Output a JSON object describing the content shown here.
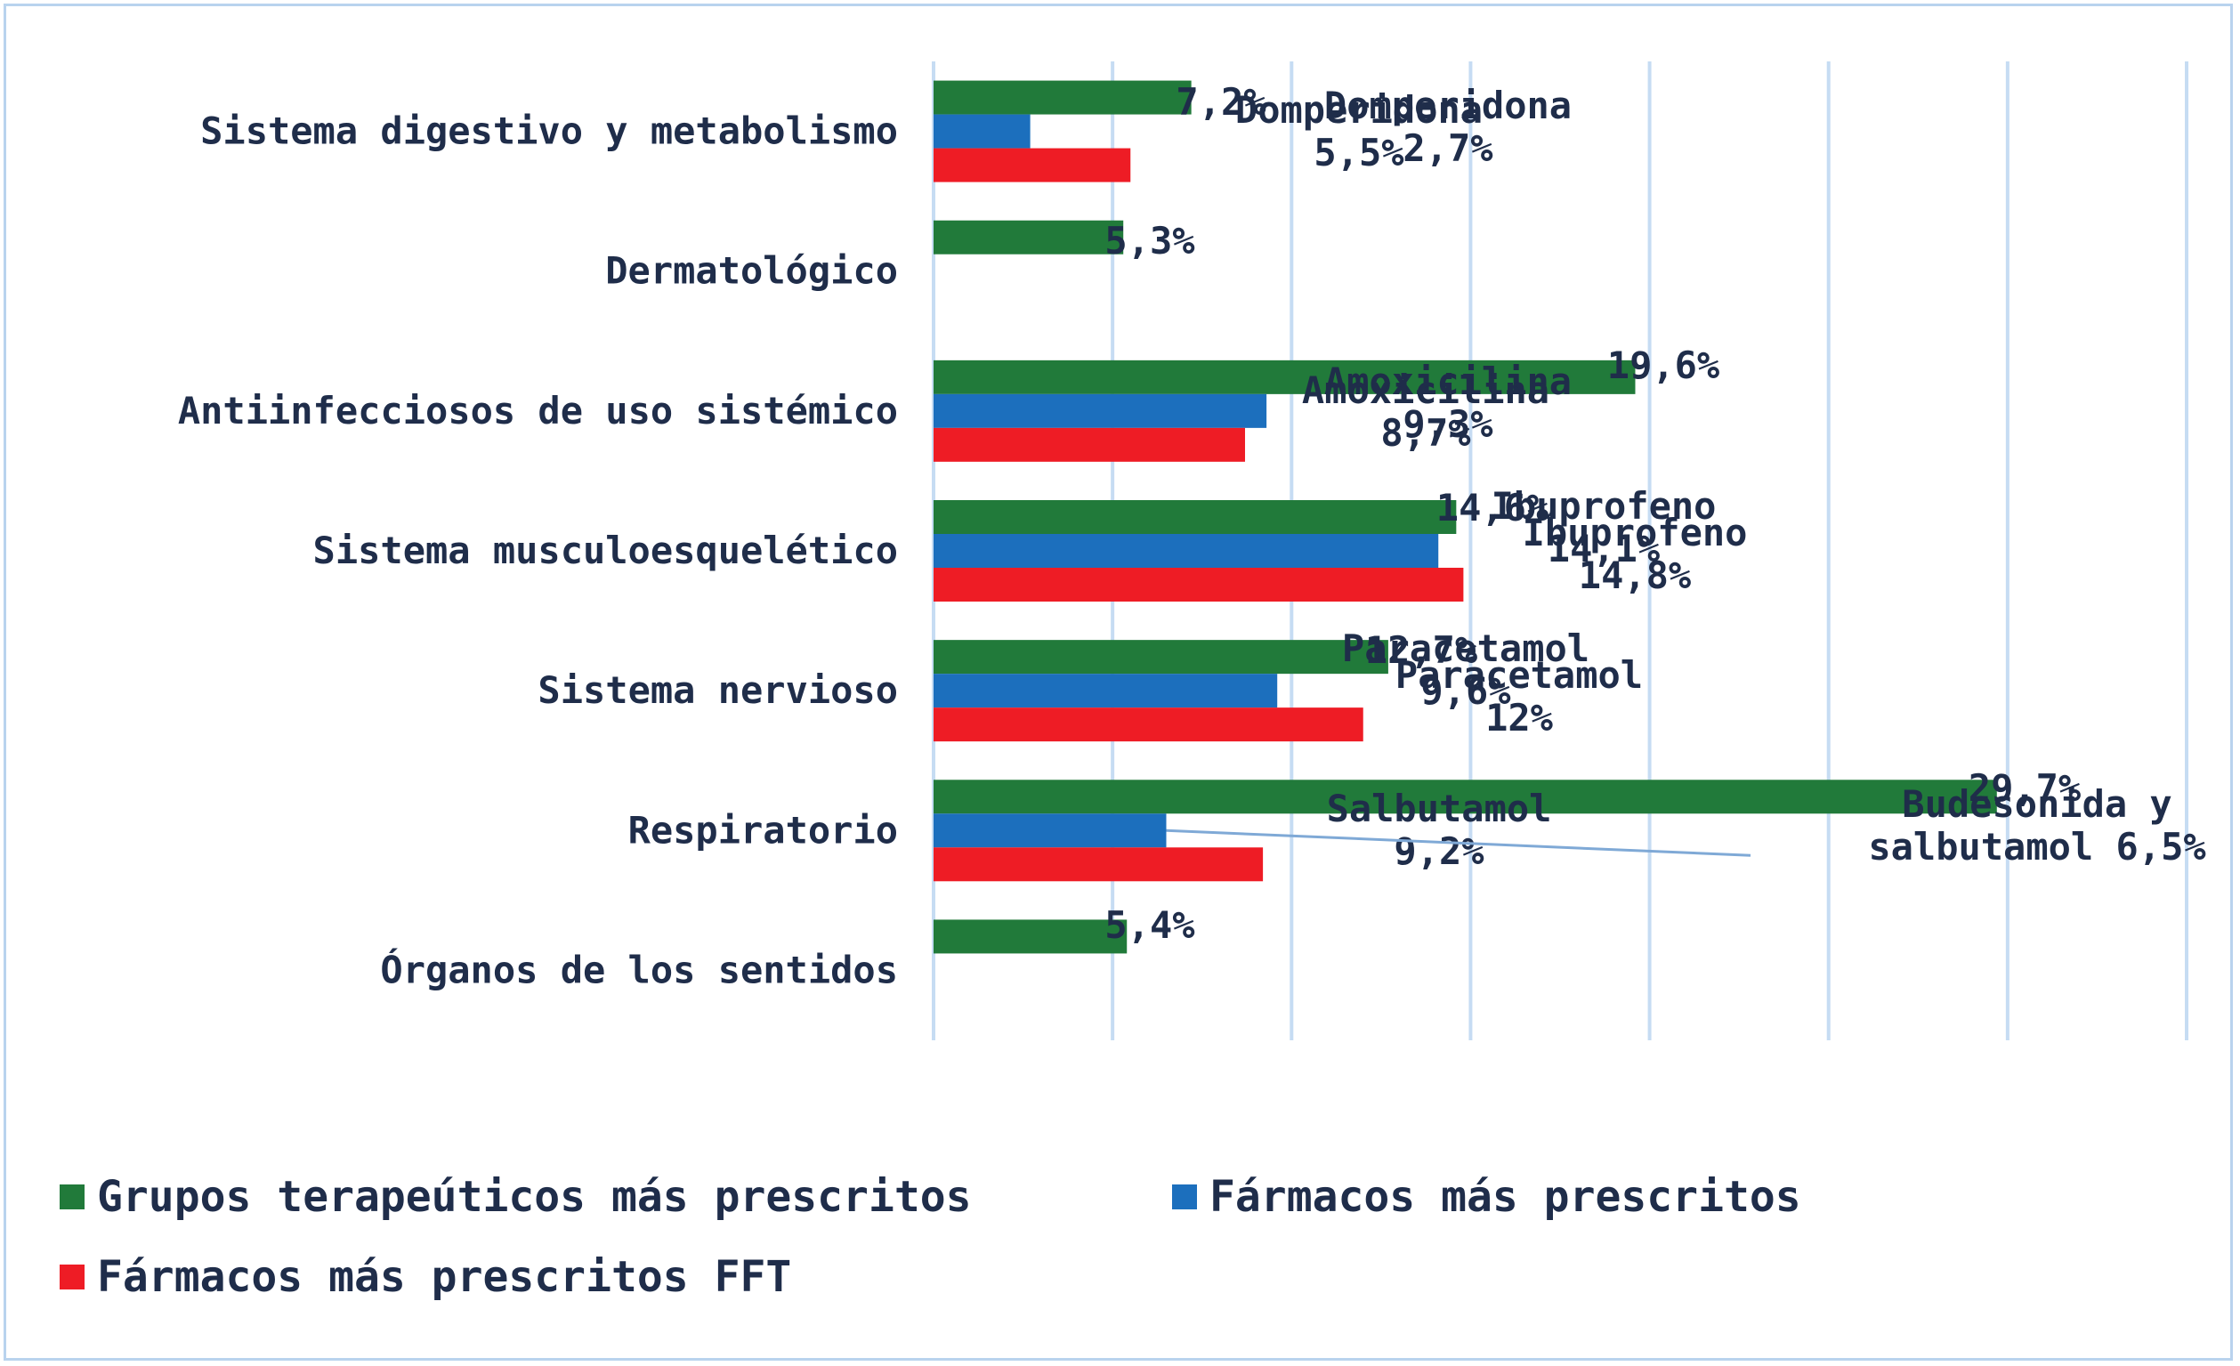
{
  "chart_data": {
    "type": "bar",
    "orientation": "horizontal",
    "categories": [
      "Sistema digestivo y metabolismo",
      "Dermatológico",
      "Antiinfecciosos de uso sistémico",
      "Sistema musculoesquelético",
      "Sistema nervioso",
      "Respiratorio",
      "Órganos de los sentidos"
    ],
    "series": [
      {
        "name": "Grupos terapeúticos más prescritos",
        "color": "#217a3a",
        "values": [
          7.2,
          5.3,
          19.6,
          14.6,
          12.7,
          29.7,
          5.4
        ],
        "labels": [
          "7,2%",
          "5,3%",
          "19,6%",
          "14,6%",
          "12,7%",
          "29,7%",
          "5,4%"
        ]
      },
      {
        "name": "Fármacos más prescritos",
        "color": "#1c6fbd",
        "values": [
          2.7,
          null,
          9.3,
          14.1,
          9.6,
          6.5,
          null
        ],
        "labels": [
          "Domperidona\n2,7%",
          "",
          "Amoxicilina\n9,3%",
          "Ibuprofeno\n14,1%",
          "Paracetamol\n9,6%",
          "Budesonida y\nsalbutamol 6,5%",
          ""
        ]
      },
      {
        "name": "Fármacos más prescritos FFT",
        "color": "#ee1c25",
        "values": [
          5.5,
          null,
          8.7,
          14.8,
          12.0,
          9.2,
          null
        ],
        "labels": [
          "Domperidona\n5,5%",
          "",
          "Amoxicilina\n8,7%",
          "Ibuprofeno\n14,8%",
          "Paracetamol\n12%",
          "Salbutamol\n9,2%",
          ""
        ]
      }
    ],
    "xlim": [
      0,
      35
    ],
    "x_grid_step": 5,
    "grid": true,
    "gridline_color": "#c6dcf3",
    "legend_position": "bottom",
    "title": "",
    "xlabel": "",
    "ylabel": ""
  }
}
